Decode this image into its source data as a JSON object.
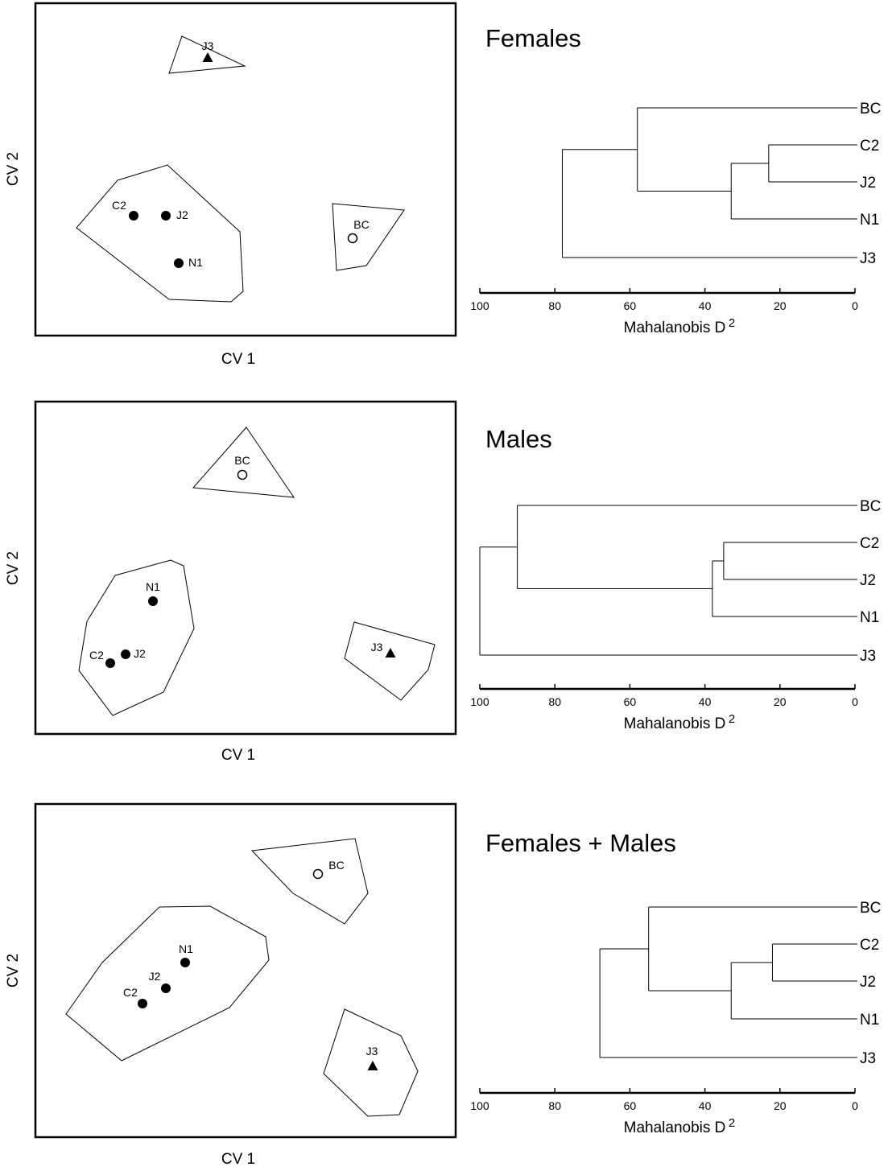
{
  "chart_data": [
    {
      "type": "scatter",
      "panel_group": "Females",
      "xlabel": "CV 1",
      "ylabel": "CV 2",
      "grid": false,
      "points": [
        {
          "label": "J3",
          "marker": "triangle"
        },
        {
          "label": "C2",
          "marker": "filled-circle"
        },
        {
          "label": "J2",
          "marker": "filled-circle"
        },
        {
          "label": "N1",
          "marker": "filled-circle"
        },
        {
          "label": "BC",
          "marker": "open-circle"
        }
      ]
    },
    {
      "type": "dendrogram",
      "title": "Females",
      "xlabel": "Mahalanobis D",
      "xlabel_superscript": "2",
      "xlim": [
        100,
        0
      ],
      "xticks": [
        100,
        80,
        60,
        40,
        20,
        0
      ],
      "leaves": [
        "BC",
        "C2",
        "J2",
        "N1",
        "J3"
      ],
      "merges": [
        {
          "items": [
            "C2",
            "J2"
          ],
          "distance": 23
        },
        {
          "items": [
            "C2+J2",
            "N1"
          ],
          "distance": 33
        },
        {
          "items": [
            "BC",
            "C2+J2+N1"
          ],
          "distance": 58
        },
        {
          "items": [
            "BC+C2+J2+N1",
            "J3"
          ],
          "distance": 78
        }
      ]
    },
    {
      "type": "scatter",
      "panel_group": "Males",
      "xlabel": "CV 1",
      "ylabel": "CV 2",
      "grid": false,
      "points": [
        {
          "label": "BC",
          "marker": "open-circle"
        },
        {
          "label": "N1",
          "marker": "filled-circle"
        },
        {
          "label": "C2",
          "marker": "filled-circle"
        },
        {
          "label": "J2",
          "marker": "filled-circle"
        },
        {
          "label": "J3",
          "marker": "triangle"
        }
      ]
    },
    {
      "type": "dendrogram",
      "title": "Males",
      "xlabel": "Mahalanobis D",
      "xlabel_superscript": "2",
      "xlim": [
        100,
        0
      ],
      "xticks": [
        100,
        80,
        60,
        40,
        20,
        0
      ],
      "leaves": [
        "BC",
        "C2",
        "J2",
        "N1",
        "J3"
      ],
      "merges": [
        {
          "items": [
            "C2",
            "J2"
          ],
          "distance": 35
        },
        {
          "items": [
            "C2+J2",
            "N1"
          ],
          "distance": 38
        },
        {
          "items": [
            "BC",
            "C2+J2+N1"
          ],
          "distance": 90
        },
        {
          "items": [
            "BC+C2+J2+N1",
            "J3"
          ],
          "distance": 100
        }
      ]
    },
    {
      "type": "scatter",
      "panel_group": "Females + Males",
      "xlabel": "CV 1",
      "ylabel": "CV 2",
      "grid": false,
      "points": [
        {
          "label": "BC",
          "marker": "open-circle"
        },
        {
          "label": "N1",
          "marker": "filled-circle"
        },
        {
          "label": "J2",
          "marker": "filled-circle"
        },
        {
          "label": "C2",
          "marker": "filled-circle"
        },
        {
          "label": "J3",
          "marker": "triangle"
        }
      ]
    },
    {
      "type": "dendrogram",
      "title": "Females + Males",
      "xlabel": "Mahalanobis D",
      "xlabel_superscript": "2",
      "xlim": [
        100,
        0
      ],
      "xticks": [
        100,
        80,
        60,
        40,
        20,
        0
      ],
      "leaves": [
        "BC",
        "C2",
        "J2",
        "N1",
        "J3"
      ],
      "merges": [
        {
          "items": [
            "C2",
            "J2"
          ],
          "distance": 22
        },
        {
          "items": [
            "C2+J2",
            "N1"
          ],
          "distance": 33
        },
        {
          "items": [
            "BC",
            "C2+J2+N1"
          ],
          "distance": 55
        },
        {
          "items": [
            "BC+C2+J2+N1",
            "J3"
          ],
          "distance": 68
        }
      ]
    }
  ]
}
